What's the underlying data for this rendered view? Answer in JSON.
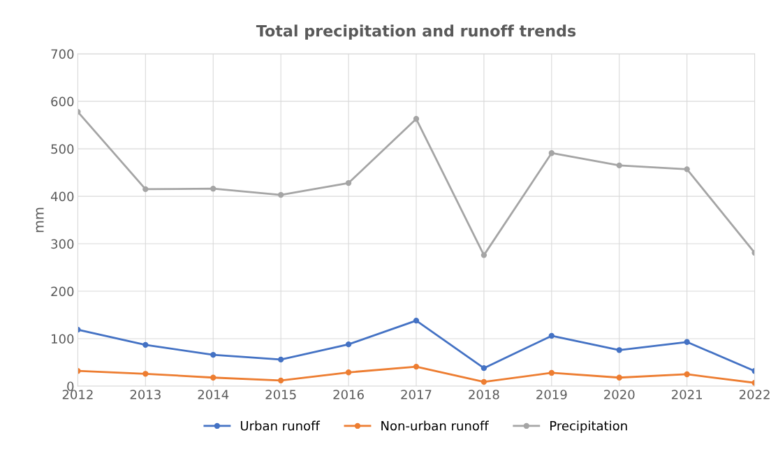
{
  "chart_data": {
    "type": "line",
    "title": "Total precipitation and runoff trends",
    "ylabel": "mm",
    "x": [
      2012,
      2013,
      2014,
      2015,
      2016,
      2017,
      2018,
      2019,
      2020,
      2021,
      2022
    ],
    "series": [
      {
        "name": "Urban runoff",
        "color": "#4472c4",
        "values": [
          119,
          87,
          66,
          56,
          88,
          138,
          38,
          106,
          76,
          93,
          32
        ]
      },
      {
        "name": "Non-urban runoff",
        "color": "#ed7d31",
        "values": [
          32,
          26,
          18,
          12,
          29,
          41,
          9,
          28,
          18,
          25,
          7
        ]
      },
      {
        "name": "Precipitation",
        "color": "#a5a5a5",
        "values": [
          578,
          415,
          416,
          403,
          428,
          563,
          276,
          491,
          465,
          457,
          281
        ]
      }
    ],
    "xlim": [
      2012,
      2022
    ],
    "xticks": [
      2012,
      2013,
      2014,
      2015,
      2016,
      2017,
      2018,
      2019,
      2020,
      2021,
      2022
    ],
    "ylim": [
      0,
      700
    ],
    "yticks": [
      0,
      100,
      200,
      300,
      400,
      500,
      600,
      700
    ],
    "grid": true,
    "legend": "bottom",
    "marker": "circle",
    "line_style": "solid"
  }
}
